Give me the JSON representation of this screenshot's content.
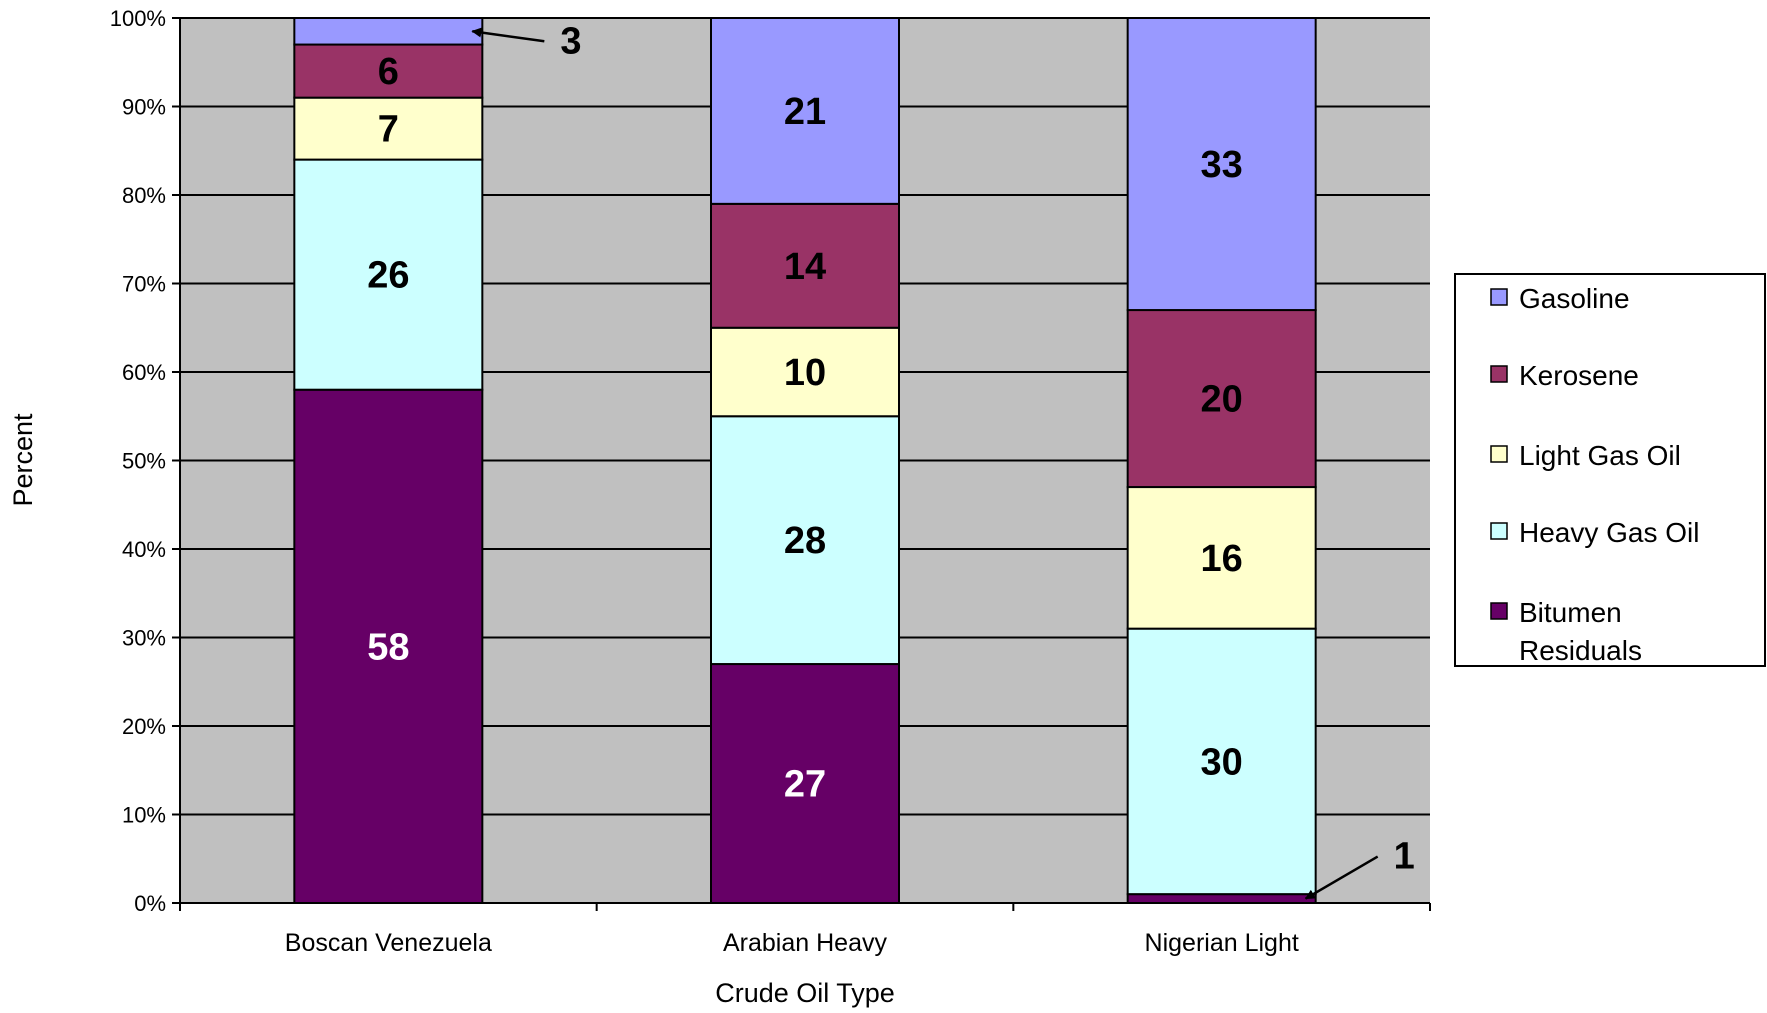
{
  "chart_data": {
    "type": "bar",
    "stacked": true,
    "percent_stacked": true,
    "categories": [
      "Boscan Venezuela",
      "Arabian Heavy",
      "Nigerian Light"
    ],
    "series": [
      {
        "name": "Bitumen Residuals",
        "values": [
          58,
          27,
          1
        ],
        "color": "#660066",
        "label_color": "#ffffff"
      },
      {
        "name": "Heavy Gas Oil",
        "values": [
          26,
          28,
          30
        ],
        "color": "#ccffff",
        "label_color": "#000000"
      },
      {
        "name": "Light Gas Oil",
        "values": [
          7,
          10,
          16
        ],
        "color": "#ffffcc",
        "label_color": "#000000"
      },
      {
        "name": "Kerosene",
        "values": [
          6,
          14,
          20
        ],
        "color": "#993366",
        "label_color": "#000000"
      },
      {
        "name": "Gasoline",
        "values": [
          3,
          21,
          33
        ],
        "color": "#9999ff",
        "label_color": "#000000"
      }
    ],
    "legend_order": [
      "Gasoline",
      "Kerosene",
      "Light Gas Oil",
      "Heavy Gas Oil",
      "Bitumen Residuals"
    ],
    "legend_lines": {
      "Gasoline": [
        "Gasoline"
      ],
      "Kerosene": [
        "Kerosene"
      ],
      "Light Gas Oil": [
        "Light Gas Oil"
      ],
      "Heavy Gas Oil": [
        "Heavy Gas Oil"
      ],
      "Bitumen Residuals": [
        "Bitumen",
        "Residuals"
      ]
    },
    "y_ticks": [
      "0%",
      "10%",
      "20%",
      "30%",
      "40%",
      "50%",
      "60%",
      "70%",
      "80%",
      "90%",
      "100%"
    ],
    "ylim": [
      0,
      100
    ],
    "xlabel": "Crude Oil Type",
    "ylabel": "Percent",
    "grid": true,
    "legend_position": "right",
    "plot_background": "#c0c0c0",
    "callouts": [
      {
        "category": "Boscan Venezuela",
        "series": "Gasoline",
        "text": "3"
      },
      {
        "category": "Nigerian Light",
        "series": "Bitumen Residuals",
        "text": "1"
      }
    ]
  }
}
